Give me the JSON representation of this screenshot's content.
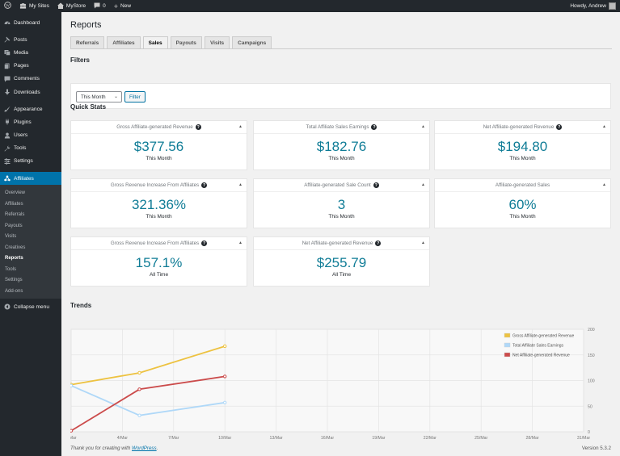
{
  "adminbar": {
    "my_sites": "My Sites",
    "site_name": "MyStore",
    "comments_count": "0",
    "new_label": "New",
    "howdy": "Howdy, Andrew"
  },
  "sidebar": {
    "items": [
      {
        "label": "Dashboard",
        "icon": "dashboard-icon"
      },
      {
        "label": "Posts",
        "icon": "pin-icon"
      },
      {
        "label": "Media",
        "icon": "media-icon"
      },
      {
        "label": "Pages",
        "icon": "pages-icon"
      },
      {
        "label": "Comments",
        "icon": "comment-icon"
      },
      {
        "label": "Downloads",
        "icon": "download-icon"
      },
      {
        "label": "Appearance",
        "icon": "brush-icon"
      },
      {
        "label": "Plugins",
        "icon": "plugin-icon"
      },
      {
        "label": "Users",
        "icon": "users-icon"
      },
      {
        "label": "Tools",
        "icon": "wrench-icon"
      },
      {
        "label": "Settings",
        "icon": "settings-icon"
      },
      {
        "label": "Affiliates",
        "icon": "affiliates-icon"
      }
    ],
    "submenu": [
      "Overview",
      "Affiliates",
      "Referrals",
      "Payouts",
      "Visits",
      "Creatives",
      "Reports",
      "Tools",
      "Settings",
      "Add-ons"
    ],
    "collapse": "Collapse menu"
  },
  "page": {
    "title": "Reports",
    "tabs": [
      "Referrals",
      "Affiliates",
      "Sales",
      "Payouts",
      "Visits",
      "Campaigns"
    ],
    "active_tab": "Sales"
  },
  "filters": {
    "heading": "Filters",
    "period_value": "This Month",
    "button": "Filter"
  },
  "quick_stats": {
    "heading": "Quick Stats",
    "cards": [
      {
        "title": "Gross Affiliate-generated Revenue",
        "value": "$377.56",
        "period": "This Month"
      },
      {
        "title": "Total Affiliate Sales Earnings",
        "value": "$182.76",
        "period": "This Month"
      },
      {
        "title": "Net Affiliate-generated Revenue",
        "value": "$194.80",
        "period": "This Month"
      },
      {
        "title": "Gross Revenue Increase From Affiliates",
        "value": "321.36%",
        "period": "This Month"
      },
      {
        "title": "Affiliate-generated Sale Count",
        "value": "3",
        "period": "This Month"
      },
      {
        "title": "Affiliate-generated Sales",
        "value": "60%",
        "period": "This Month"
      },
      {
        "title": "Gross Revenue Increase From Affiliates",
        "value": "157.1%",
        "period": "All Time"
      },
      {
        "title": "Net Affiliate-generated Revenue",
        "value": "$255.79",
        "period": "All Time"
      }
    ]
  },
  "trends": {
    "heading": "Trends"
  },
  "chart_data": {
    "type": "line",
    "x": [
      "1/Mar",
      "4/Mar",
      "7/Mar",
      "10/Mar",
      "13/Mar",
      "16/Mar",
      "19/Mar",
      "22/Mar",
      "25/Mar",
      "28/Mar",
      "31/Mar"
    ],
    "ylim": [
      0,
      200
    ],
    "yticks": [
      0,
      50,
      100,
      150,
      200
    ],
    "grid": true,
    "legend": "top-right",
    "series": [
      {
        "name": "Gross Affiliate-generated Revenue",
        "color": "#edc240",
        "points": [
          [
            1,
            92
          ],
          [
            5,
            115
          ],
          [
            10,
            167
          ]
        ]
      },
      {
        "name": "Total Affiliate Sales Earnings",
        "color": "#afd8f8",
        "points": [
          [
            1,
            90
          ],
          [
            5,
            32
          ],
          [
            10,
            57
          ]
        ]
      },
      {
        "name": "Net Affiliate-generated Revenue",
        "color": "#cb4b4b",
        "points": [
          [
            1,
            2
          ],
          [
            5,
            83
          ],
          [
            10,
            108
          ]
        ]
      }
    ]
  },
  "footer": {
    "text_pre": "Thank you for creating with ",
    "link": "WordPress",
    "text_post": ".",
    "version": "Version 5.3.2"
  }
}
